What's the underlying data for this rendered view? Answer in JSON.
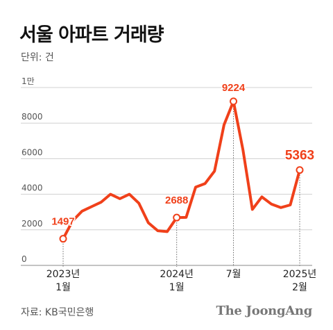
{
  "title": "서울 아파트 거래량",
  "unit": "단위: 건",
  "source": "자료: KB국민은행",
  "brand": "The JoongAng",
  "colors": {
    "line": "#f0401a",
    "grid": "#d0d0d0",
    "tick": "#555555"
  },
  "chart_data": {
    "type": "line",
    "title": "서울 아파트 거래량",
    "xlabel": "",
    "ylabel": "",
    "ylim": [
      0,
      10000
    ],
    "grid": true,
    "y_ticks": [
      {
        "value": 10000,
        "label": "1만"
      },
      {
        "value": 8000,
        "label": "8000"
      },
      {
        "value": 6000,
        "label": "6000"
      },
      {
        "value": 4000,
        "label": "4000"
      },
      {
        "value": 2000,
        "label": "2000"
      },
      {
        "value": 0,
        "label": "0"
      }
    ],
    "x": [
      "2023-01",
      "2023-02",
      "2023-03",
      "2023-04",
      "2023-05",
      "2023-06",
      "2023-07",
      "2023-08",
      "2023-09",
      "2023-10",
      "2023-11",
      "2023-12",
      "2024-01",
      "2024-02",
      "2024-03",
      "2024-04",
      "2024-05",
      "2024-06",
      "2024-07",
      "2024-08",
      "2024-09",
      "2024-10",
      "2024-11",
      "2024-12",
      "2025-01",
      "2025-02"
    ],
    "x_tick_labels": [
      {
        "x": "2023-01",
        "line1": "2023년",
        "line2": "1월"
      },
      {
        "x": "2024-01",
        "line1": "2024년",
        "line2": "1월"
      },
      {
        "x": "2024-07",
        "line1": "7월",
        "line2": ""
      },
      {
        "x": "2025-02",
        "line1": "2025년",
        "line2": "2월"
      }
    ],
    "series": [
      {
        "values": [
          1497,
          2500,
          3050,
          3300,
          3550,
          4000,
          3750,
          4000,
          3500,
          2400,
          1950,
          1900,
          2688,
          2700,
          4400,
          4600,
          5300,
          7900,
          9224,
          6500,
          3150,
          3850,
          3450,
          3250,
          3400,
          5363
        ]
      }
    ],
    "annotations": [
      {
        "x": "2023-01",
        "label": "1497"
      },
      {
        "x": "2024-01",
        "label": "2688"
      },
      {
        "x": "2024-07",
        "label": "9224"
      },
      {
        "x": "2025-02",
        "label": "5363"
      }
    ]
  }
}
